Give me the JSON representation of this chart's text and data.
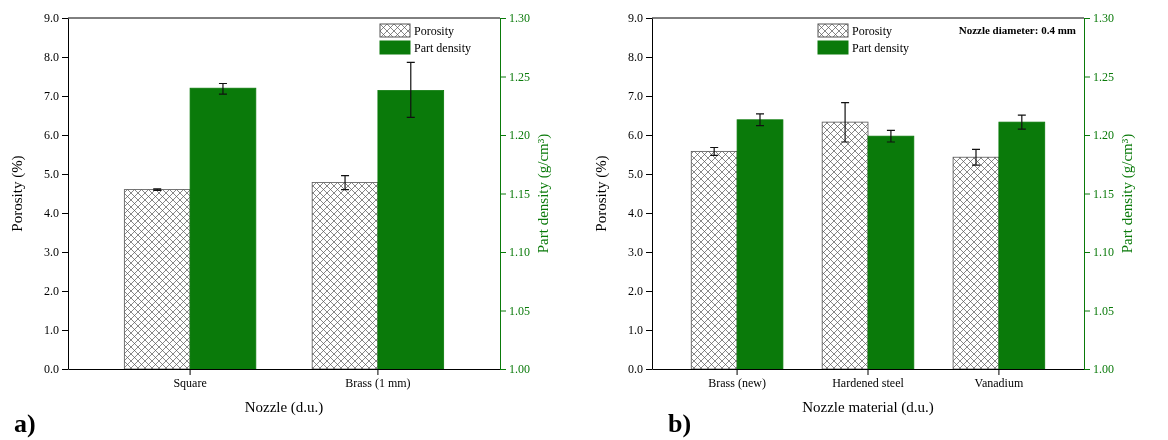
{
  "chart_data": [
    {
      "type": "bar",
      "categories": [
        "Square",
        "Brass (1 mm)"
      ],
      "xlabel": "Nozzle (d.u.)",
      "ylabel": "Porosity (%)",
      "y2label": "Part density (g/cm³)",
      "ylim": [
        0,
        9
      ],
      "yticks": [
        {
          "value": 0,
          "label": "0.0"
        },
        {
          "value": 1,
          "label": "1.0"
        },
        {
          "value": 2,
          "label": "2.0"
        },
        {
          "value": 3,
          "label": "3.0"
        },
        {
          "value": 4,
          "label": "4.0"
        },
        {
          "value": 5,
          "label": "5.0"
        },
        {
          "value": 6,
          "label": "6.0"
        },
        {
          "value": 7,
          "label": "7.0"
        },
        {
          "value": 8,
          "label": "8.0"
        },
        {
          "value": 9,
          "label": "9.0"
        }
      ],
      "y2lim": [
        1.0,
        1.3
      ],
      "y2ticks": [
        {
          "value": 1.0,
          "label": "1.00"
        },
        {
          "value": 1.05,
          "label": "1.05"
        },
        {
          "value": 1.1,
          "label": "1.10"
        },
        {
          "value": 1.15,
          "label": "1.15"
        },
        {
          "value": 1.2,
          "label": "1.20"
        },
        {
          "value": 1.25,
          "label": "1.25"
        },
        {
          "value": 1.3,
          "label": "1.30"
        }
      ],
      "series": [
        {
          "name": "Porosity",
          "color": "#555555",
          "values": [
            4.6,
            4.78
          ],
          "errors": [
            0.02,
            0.18
          ]
        },
        {
          "name": "Part density",
          "color": "#0a7a0a",
          "axis": "y2",
          "values": [
            1.24,
            1.238
          ],
          "errors": [
            [
              1.235,
              1.244
            ],
            [
              1.215,
              1.262
            ]
          ]
        }
      ],
      "legend": "top right",
      "annotations": [
        "a)"
      ]
    },
    {
      "type": "bar",
      "categories": [
        "Brass (new)",
        "Hardened steel",
        "Vanadium"
      ],
      "xlabel": "Nozzle material (d.u.)",
      "ylabel": "Porosity (%)",
      "y2label": "Part density (g/cm³)",
      "ylim": [
        0,
        9
      ],
      "yticks": [
        {
          "value": 0,
          "label": "0.0"
        },
        {
          "value": 1,
          "label": "1.0"
        },
        {
          "value": 2,
          "label": "2.0"
        },
        {
          "value": 3,
          "label": "3.0"
        },
        {
          "value": 4,
          "label": "4.0"
        },
        {
          "value": 5,
          "label": "5.0"
        },
        {
          "value": 6,
          "label": "6.0"
        },
        {
          "value": 7,
          "label": "7.0"
        },
        {
          "value": 8,
          "label": "8.0"
        },
        {
          "value": 9,
          "label": "9.0"
        }
      ],
      "y2lim": [
        1.0,
        1.3
      ],
      "y2ticks": [
        {
          "value": 1.0,
          "label": "1.00"
        },
        {
          "value": 1.05,
          "label": "1.05"
        },
        {
          "value": 1.1,
          "label": "1.10"
        },
        {
          "value": 1.15,
          "label": "1.15"
        },
        {
          "value": 1.2,
          "label": "1.20"
        },
        {
          "value": 1.25,
          "label": "1.25"
        },
        {
          "value": 1.3,
          "label": "1.30"
        }
      ],
      "series": [
        {
          "name": "Porosity",
          "color": "#555555",
          "values": [
            5.58,
            6.33,
            5.43
          ],
          "errors": [
            0.1,
            [
              5.82,
              6.83
            ],
            0.2
          ]
        },
        {
          "name": "Part density",
          "color": "#0a7a0a",
          "axis": "y2",
          "values": [
            1.213,
            1.199,
            1.211
          ],
          "errors": [
            0.005,
            0.005,
            0.006
          ]
        }
      ],
      "legend": "top center",
      "annotations": [
        "b)",
        "Nozzle diameter: 0.4 mm"
      ]
    }
  ]
}
